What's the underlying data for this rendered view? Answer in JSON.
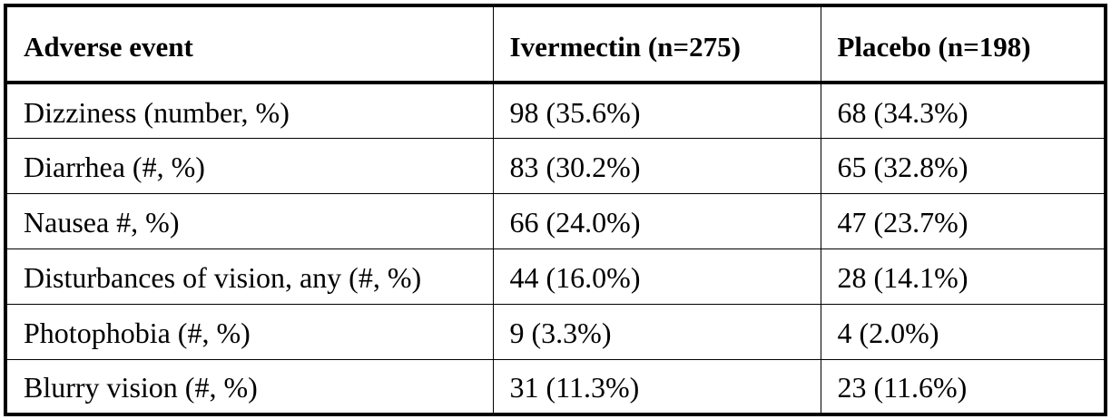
{
  "table": {
    "headers": [
      "Adverse event",
      "Ivermectin (n=275)",
      "Placebo (n=198)"
    ],
    "rows": [
      [
        "Dizziness (number, %)",
        "98 (35.6%)",
        "68 (34.3%)"
      ],
      [
        "Diarrhea (#, %)",
        "83 (30.2%)",
        "65 (32.8%)"
      ],
      [
        "Nausea #, %)",
        "66 (24.0%)",
        "47 (23.7%)"
      ],
      [
        "Disturbances of vision, any (#, %)",
        "44 (16.0%)",
        "28 (14.1%)"
      ],
      [
        "Photophobia (#, %)",
        "9 (3.3%)",
        "4 (2.0%)"
      ],
      [
        "Blurry vision (#, %)",
        "31 (11.3%)",
        "23 (11.6%)"
      ]
    ]
  }
}
